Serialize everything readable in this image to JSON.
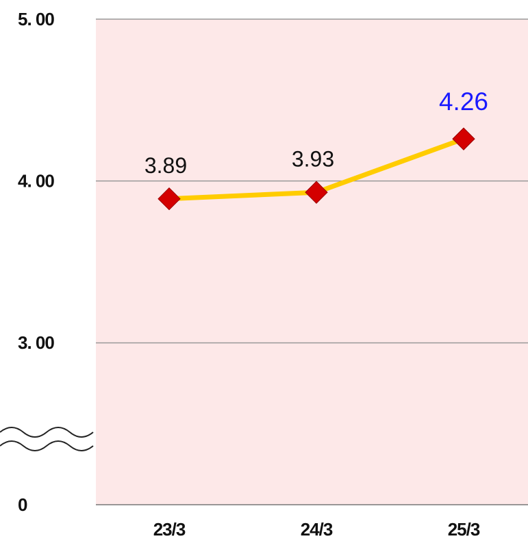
{
  "chart_data": {
    "type": "line",
    "categories": [
      "23/3",
      "24/3",
      "25/3"
    ],
    "series": [
      {
        "color": "#ffcc00",
        "marker_color": "#d40000",
        "values": [
          3.89,
          3.93,
          4.26
        ]
      }
    ],
    "value_label_colors": [
      "#111111",
      "#111111",
      "#1a1aff"
    ],
    "ylim": [
      0,
      5
    ],
    "yticks": [
      {
        "value": 5,
        "label": "5. 00"
      },
      {
        "value": 4,
        "label": "4. 00"
      },
      {
        "value": 3,
        "label": "3. 00"
      },
      0
    ],
    "axis_break": true,
    "grid": true,
    "plot_background": "#fde8e8"
  }
}
